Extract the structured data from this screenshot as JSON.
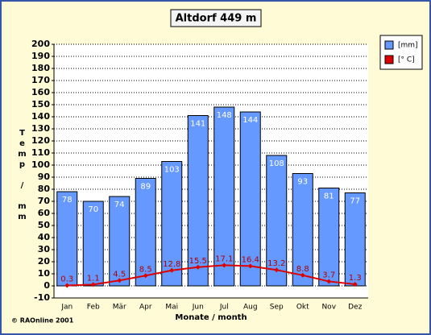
{
  "chart_data": {
    "type": "bar",
    "title": "Altdorf 449 m",
    "categories": [
      "Jan",
      "Feb",
      "Mär",
      "Apr",
      "Mai",
      "Jun",
      "Jul",
      "Aug",
      "Sep",
      "Okt",
      "Nov",
      "Dez"
    ],
    "series": [
      {
        "name": "[mm]",
        "type": "bar",
        "color": "#6699ff",
        "values": [
          78,
          70,
          74,
          89,
          103,
          141,
          148,
          144,
          108,
          93,
          81,
          77
        ]
      },
      {
        "name": "[° C]",
        "type": "line",
        "color": "#dd0000",
        "values": [
          0.3,
          1.1,
          4.5,
          8.5,
          12.8,
          15.5,
          17.1,
          16.4,
          13.2,
          8.8,
          3.7,
          1.3
        ]
      }
    ],
    "ylim": [
      -10,
      200
    ],
    "yticks": [
      -10,
      0,
      10,
      20,
      30,
      40,
      50,
      60,
      70,
      80,
      90,
      100,
      110,
      120,
      130,
      140,
      150,
      160,
      170,
      180,
      190,
      200
    ],
    "grid": true,
    "legend": "right",
    "x_label": "Monate / month",
    "y_label": "Temp / mm",
    "credit": "© RAOnline 2001"
  }
}
